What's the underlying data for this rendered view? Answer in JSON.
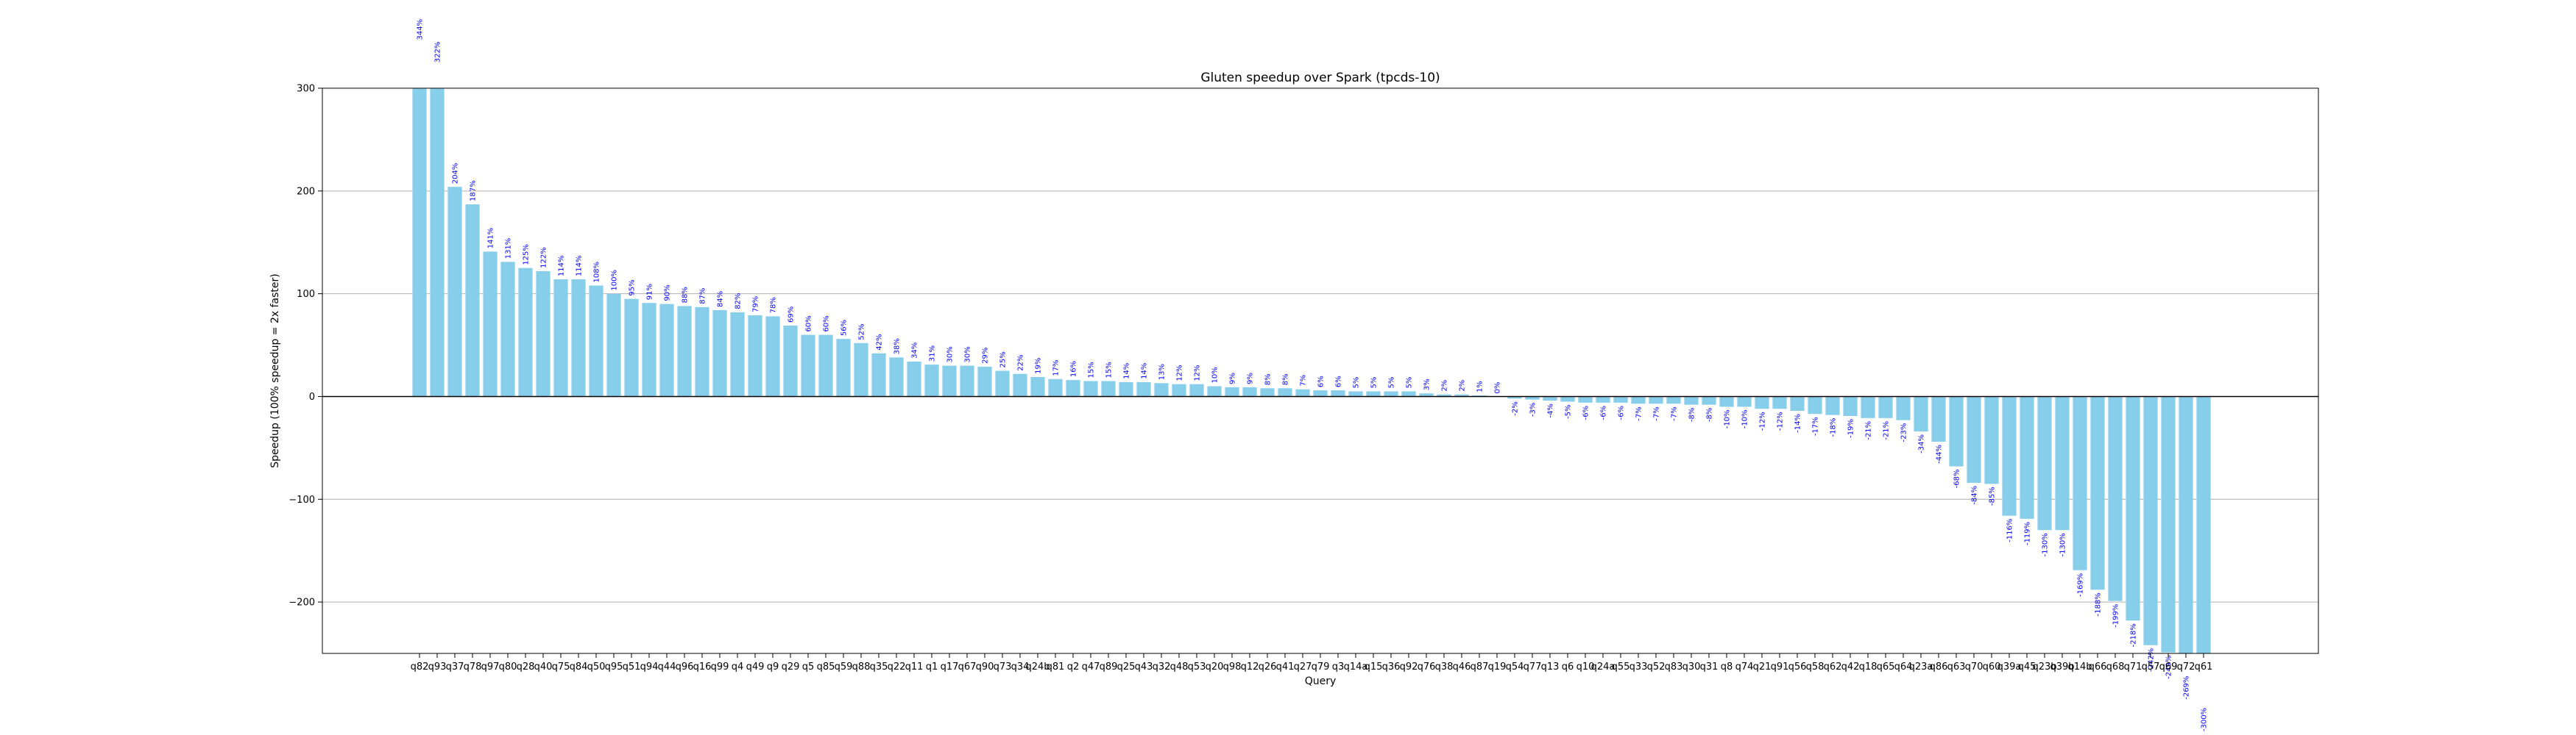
{
  "chart_data": {
    "type": "bar",
    "title": "Gluten speedup over Spark (tpcds-10)",
    "xlabel": "Query",
    "ylabel": "Speedup (100% speedup = 2x faster)",
    "ylim": [
      -250,
      300
    ],
    "yticks": [
      -200,
      -100,
      0,
      100,
      200,
      300
    ],
    "grid": "horizontal",
    "colors": {
      "bar": "#87ceeb",
      "label": "#0000ff",
      "grid": "#b0b0b0",
      "axis": "#000000"
    },
    "categories": [
      "q82",
      "q93",
      "q37",
      "q78",
      "q97",
      "q80",
      "q28",
      "q40",
      "q75",
      "q84",
      "q50",
      "q95",
      "q51",
      "q94",
      "q44",
      "q96",
      "q16",
      "q99",
      "q4",
      "q49",
      "q9",
      "q29",
      "q5",
      "q85",
      "q59",
      "q88",
      "q35",
      "q22",
      "q11",
      "q1",
      "q17",
      "q67",
      "q90",
      "q73",
      "q34",
      "q24b",
      "q81",
      "q2",
      "q47",
      "q89",
      "q25",
      "q43",
      "q32",
      "q48",
      "q53",
      "q20",
      "q98",
      "q12",
      "q26",
      "q41",
      "q27",
      "q79",
      "q3",
      "q14a",
      "q15",
      "q36",
      "q92",
      "q76",
      "q38",
      "q46",
      "q87",
      "q19",
      "q54",
      "q77",
      "q13",
      "q6",
      "q10",
      "q24a",
      "q55",
      "q33",
      "q52",
      "q83",
      "q30",
      "q31",
      "q8",
      "q74",
      "q21",
      "q91",
      "q56",
      "q58",
      "q62",
      "q42",
      "q18",
      "q65",
      "q64",
      "q23a",
      "q86",
      "q63",
      "q70",
      "q60",
      "q39a",
      "q45",
      "q23b",
      "q39b",
      "q14b",
      "q66",
      "q68",
      "q71",
      "q57",
      "q69",
      "q72",
      "q61"
    ],
    "values": [
      344,
      322,
      204,
      187,
      141,
      131,
      125,
      122,
      114,
      114,
      108,
      100,
      95,
      91,
      90,
      88,
      87,
      84,
      82,
      79,
      78,
      69,
      60,
      60,
      56,
      52,
      42,
      38,
      34,
      31,
      30,
      30,
      29,
      25,
      22,
      19,
      17,
      16,
      15,
      15,
      14,
      14,
      13,
      12,
      12,
      10,
      9,
      9,
      8,
      8,
      7,
      6,
      6,
      5,
      5,
      5,
      5,
      3,
      2,
      2,
      1,
      0,
      -2,
      -3,
      -4,
      -5,
      -6,
      -6,
      -6,
      -7,
      -7,
      -7,
      -8,
      -8,
      -10,
      -10,
      -12,
      -12,
      -14,
      -17,
      -18,
      -19,
      -21,
      -21,
      -23,
      -34,
      -44,
      -68,
      -84,
      -85,
      -116,
      -119,
      -130,
      -130,
      -169,
      -188,
      -199,
      -218,
      -242,
      -249,
      -269,
      -300
    ],
    "labels": [
      "344%",
      "322%",
      "204%",
      "187%",
      "141%",
      "131%",
      "125%",
      "122%",
      "114%",
      "114%",
      "108%",
      "100%",
      "95%",
      "91%",
      "90%",
      "88%",
      "87%",
      "84%",
      "82%",
      "79%",
      "78%",
      "69%",
      "60%",
      "60%",
      "56%",
      "52%",
      "42%",
      "38%",
      "34%",
      "31%",
      "30%",
      "30%",
      "29%",
      "25%",
      "22%",
      "19%",
      "17%",
      "16%",
      "15%",
      "15%",
      "14%",
      "14%",
      "13%",
      "12%",
      "12%",
      "10%",
      "9%",
      "9%",
      "8%",
      "8%",
      "7%",
      "6%",
      "6%",
      "5%",
      "5%",
      "5%",
      "5%",
      "3%",
      "2%",
      "2%",
      "1%",
      "0%",
      "-2%",
      "-3%",
      "-4%",
      "-5%",
      "-6%",
      "-6%",
      "-6%",
      "-7%",
      "-7%",
      "-7%",
      "-8%",
      "-8%",
      "-10%",
      "-10%",
      "-12%",
      "-12%",
      "-14%",
      "-17%",
      "-18%",
      "-19%",
      "-21%",
      "-21%",
      "-23%",
      "-34%",
      "-44%",
      "-68%",
      "-84%",
      "-85%",
      "-116%",
      "-119%",
      "-130%",
      "-130%",
      "-169%",
      "-188%",
      "-199%",
      "-218%",
      "-242%",
      "-249%",
      "-269%",
      "-300%"
    ],
    "bar_label_display": [
      "344%",
      "322%",
      "204%",
      "187%",
      "141%",
      "131%",
      "125%",
      "122%",
      "114%",
      "114%",
      "108%",
      "100%",
      "95%",
      "91%",
      "90%",
      "88%",
      "87%",
      "84%",
      "82%",
      "79%",
      "78%",
      "69%",
      "60%",
      "60%",
      "56%",
      "52%",
      "42%",
      "38%",
      "34%",
      "31%",
      "30%",
      "30%",
      "29%",
      "25%",
      "22%",
      "19%",
      "17%",
      "16%",
      "15%",
      "15%",
      "14%",
      "14%",
      "13%",
      "12%",
      "12%",
      "10%",
      "9%",
      "9%",
      "8%",
      "8%",
      "7%",
      "6%",
      "6%",
      "5%",
      "5%",
      "5%",
      "5%",
      "3%",
      "2%",
      "2%",
      "1%",
      "0%",
      "-2%",
      "-3%",
      "-4%",
      "-5%",
      "-6%",
      "-6%",
      "-6%",
      "-7%",
      "-7%",
      "-7%",
      "-8%",
      "-8%",
      "-10%",
      "-10%",
      "-12%",
      "-12%",
      "-14%",
      "-17%",
      "-18%",
      "-19%",
      "-21%",
      "-21%",
      "-23%",
      "-34%",
      "-44%",
      "-68%",
      "-84%",
      "-85%",
      "-116%",
      "-119%",
      "-130%",
      "-130%",
      "-169%",
      "-188%",
      "-199%",
      "-218%",
      "-242%",
      "-249%",
      "-269%",
      "-300%"
    ]
  }
}
